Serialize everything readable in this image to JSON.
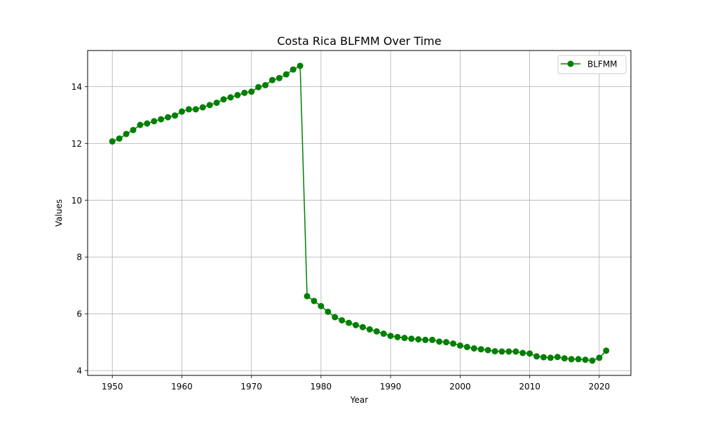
{
  "chart_data": {
    "type": "line",
    "title": "Costa Rica BLFMM Over Time",
    "xlabel": "Year",
    "ylabel": "Values",
    "xlim": [
      1946.45,
      2024.55
    ],
    "ylim": [
      3.83,
      15.27
    ],
    "x_ticks": [
      1950,
      1960,
      1970,
      1980,
      1990,
      2000,
      2010,
      2020
    ],
    "y_ticks": [
      4,
      6,
      8,
      10,
      12,
      14
    ],
    "grid": true,
    "legend_position": "top-right",
    "series": [
      {
        "name": "BLFMM",
        "color": "#008000",
        "marker": "circle",
        "x": [
          1950,
          1951,
          1952,
          1953,
          1954,
          1955,
          1956,
          1957,
          1958,
          1959,
          1960,
          1961,
          1962,
          1963,
          1964,
          1965,
          1966,
          1967,
          1968,
          1969,
          1970,
          1971,
          1972,
          1973,
          1974,
          1975,
          1976,
          1977,
          1978,
          1979,
          1980,
          1981,
          1982,
          1983,
          1984,
          1985,
          1986,
          1987,
          1988,
          1989,
          1990,
          1991,
          1992,
          1993,
          1994,
          1995,
          1996,
          1997,
          1998,
          1999,
          2000,
          2001,
          2002,
          2003,
          2004,
          2005,
          2006,
          2007,
          2008,
          2009,
          2010,
          2011,
          2012,
          2013,
          2014,
          2015,
          2016,
          2017,
          2018,
          2019,
          2020,
          2021
        ],
        "y": [
          12.07,
          12.17,
          12.33,
          12.47,
          12.65,
          12.7,
          12.78,
          12.85,
          12.92,
          12.98,
          13.12,
          13.2,
          13.2,
          13.27,
          13.35,
          13.43,
          13.55,
          13.62,
          13.7,
          13.78,
          13.82,
          13.98,
          14.05,
          14.23,
          14.3,
          14.43,
          14.6,
          14.73,
          6.62,
          6.45,
          6.27,
          6.07,
          5.88,
          5.77,
          5.68,
          5.6,
          5.53,
          5.45,
          5.38,
          5.3,
          5.22,
          5.18,
          5.15,
          5.12,
          5.1,
          5.08,
          5.08,
          5.02,
          5.0,
          4.95,
          4.88,
          4.83,
          4.78,
          4.75,
          4.72,
          4.68,
          4.67,
          4.67,
          4.67,
          4.62,
          4.6,
          4.5,
          4.47,
          4.45,
          4.48,
          4.43,
          4.4,
          4.4,
          4.38,
          4.35,
          4.45,
          4.7
        ]
      }
    ]
  }
}
